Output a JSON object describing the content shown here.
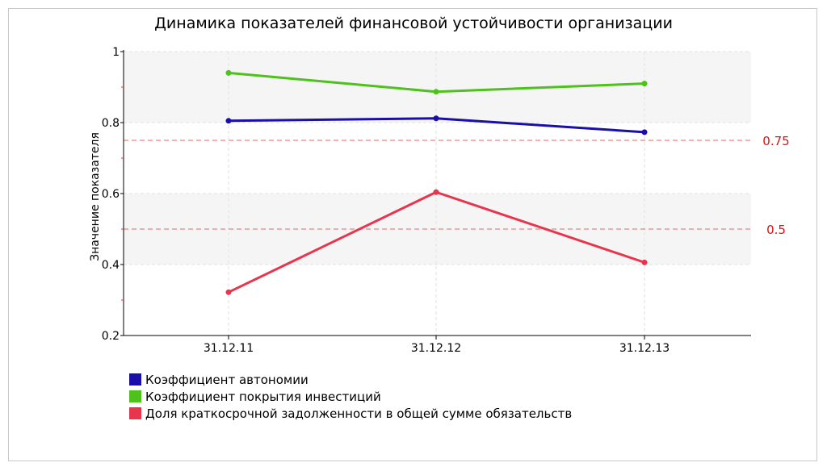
{
  "chart_data": {
    "type": "line",
    "title": "Динамика показателей финансовой устойчивости организации",
    "ylabel": "Значение показателя",
    "xlabel": "",
    "ylim": [
      0.2,
      1.0
    ],
    "yticks": [
      "0.2",
      "0.4",
      "0.6",
      "0.8",
      "1"
    ],
    "categories": [
      "31.12.11",
      "31.12.12",
      "31.12.13"
    ],
    "series": [
      {
        "name": "Коэффициент автономии",
        "color": "#1a0fa8",
        "values": [
          0.805,
          0.812,
          0.773
        ]
      },
      {
        "name": "Коэффициент покрытия инвестиций",
        "color": "#4cc21a",
        "values": [
          0.94,
          0.887,
          0.91
        ]
      },
      {
        "name": "Доля краткосрочной задолженности в общей сумме обязательств",
        "color": "#e8354e",
        "values": [
          0.322,
          0.604,
          0.406
        ]
      }
    ],
    "reference_lines": [
      {
        "label": "0.75",
        "value": 0.75,
        "color": "#e01010"
      },
      {
        "label": "0.5",
        "value": 0.5,
        "color": "#e01010"
      }
    ],
    "grid": true,
    "legend_position": "bottom-left"
  }
}
